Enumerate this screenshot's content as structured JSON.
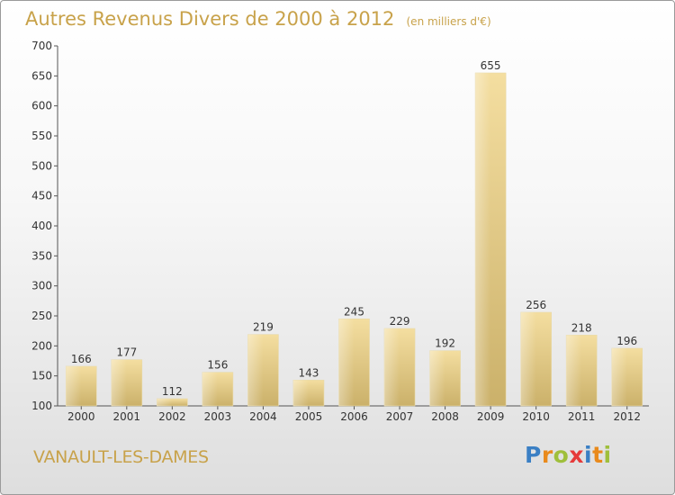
{
  "header": {
    "title": "Autres Revenus Divers de 2000 à 2012",
    "subtitle": "(en milliers d'€)"
  },
  "footer": {
    "place": "VANAULT-LES-DAMES",
    "logo": "Proxiti"
  },
  "colors": {
    "title": "#c8a24a",
    "bar_light": "#f4dea0",
    "bar_dark": "#cbb16a",
    "axis": "#555555"
  },
  "chart_data": {
    "type": "bar",
    "title": "Autres Revenus Divers de 2000 à 2012",
    "subtitle": "(en milliers d'€)",
    "categories": [
      "2000",
      "2001",
      "2002",
      "2003",
      "2004",
      "2005",
      "2006",
      "2007",
      "2008",
      "2009",
      "2010",
      "2011",
      "2012"
    ],
    "values": [
      166,
      177,
      112,
      156,
      219,
      143,
      245,
      229,
      192,
      655,
      256,
      218,
      196
    ],
    "data_labels": [
      "166",
      "177",
      "112",
      "156",
      "219",
      "143",
      "245",
      "229",
      "192",
      "655",
      "256",
      "218",
      "196"
    ],
    "ylim": [
      100,
      700
    ],
    "yticks": [
      "100",
      "150",
      "200",
      "250",
      "300",
      "350",
      "400",
      "450",
      "500",
      "550",
      "600",
      "650",
      "700"
    ],
    "xlabel": "",
    "ylabel": "",
    "grid": false,
    "legend": "none"
  }
}
